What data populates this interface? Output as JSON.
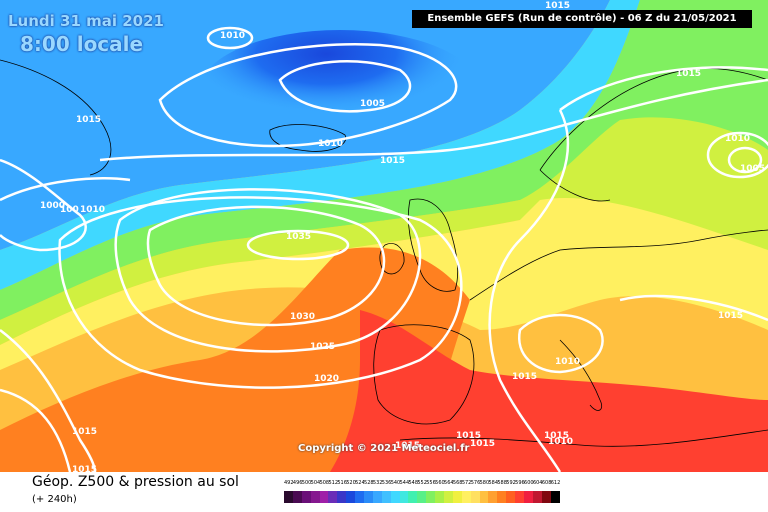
{
  "header": {
    "date": "Lundi 31 mai 2021",
    "local_time": "8:00 locale",
    "run_info": "Ensemble GEFS  (Run de contrôle)  -  06 Z du 21/05/2021"
  },
  "copyright": "Copyright © 2021 Meteociel.fr",
  "footer": {
    "title": "Géop. Z500 & pression au sol",
    "subtitle": "(+ 240h)"
  },
  "legend": {
    "values": [
      "492",
      "496",
      "500",
      "504",
      "508",
      "512",
      "516",
      "520",
      "524",
      "528",
      "532",
      "536",
      "540",
      "544",
      "548",
      "552",
      "556",
      "560",
      "564",
      "568",
      "572",
      "576",
      "580",
      "584",
      "588",
      "592",
      "596",
      "600",
      "604",
      "608",
      "612"
    ],
    "colors": [
      "#2a0a2e",
      "#4a0a52",
      "#6a0f78",
      "#85188f",
      "#9f20a8",
      "#6a2db8",
      "#3a36c8",
      "#1a48dc",
      "#1e6cf0",
      "#2a8cf8",
      "#38a8ff",
      "#40c0ff",
      "#40d8ff",
      "#40e8e0",
      "#40f0b0",
      "#58f088",
      "#80f060",
      "#a8f048",
      "#d0f040",
      "#f0f040",
      "#fff060",
      "#ffe060",
      "#ffc040",
      "#ffa030",
      "#ff8020",
      "#ff6020",
      "#ff4030",
      "#f02040",
      "#c01830",
      "#800810",
      "#000000"
    ]
  },
  "isobars": [
    {
      "value": "1010",
      "id": "iso-1010-a"
    },
    {
      "value": "1005",
      "id": "iso-1005-a"
    },
    {
      "value": "1010",
      "id": "iso-1010-b"
    },
    {
      "value": "1015",
      "id": "iso-1015-a"
    },
    {
      "value": "1015",
      "id": "iso-1015-b"
    },
    {
      "value": "1015",
      "id": "iso-1015-c"
    },
    {
      "value": "1015",
      "id": "iso-1015-d"
    },
    {
      "value": "1015",
      "id": "iso-1015-e"
    },
    {
      "value": "1010",
      "id": "iso-1010-c"
    },
    {
      "value": "1005",
      "id": "iso-1005-b"
    },
    {
      "value": "1000",
      "id": "iso-1000"
    },
    {
      "value": "100",
      "id": "iso-100"
    },
    {
      "value": "1010",
      "id": "iso-1010-d"
    },
    {
      "value": "1035",
      "id": "iso-1035"
    },
    {
      "value": "1030",
      "id": "iso-1030"
    },
    {
      "value": "1025",
      "id": "iso-1025"
    },
    {
      "value": "1020",
      "id": "iso-1020"
    },
    {
      "value": "1015",
      "id": "iso-1015-f"
    },
    {
      "value": "1015",
      "id": "iso-1015-g"
    },
    {
      "value": "1010",
      "id": "iso-1010-e"
    },
    {
      "value": "1015",
      "id": "iso-1015-h"
    },
    {
      "value": "1015",
      "id": "iso-1015-i"
    },
    {
      "value": "1015",
      "id": "iso-1015-j"
    },
    {
      "value": "1010",
      "id": "iso-1010-f"
    },
    {
      "value": "1015",
      "id": "iso-1015-k"
    },
    {
      "value": "1015",
      "id": "iso-1015-l"
    }
  ]
}
